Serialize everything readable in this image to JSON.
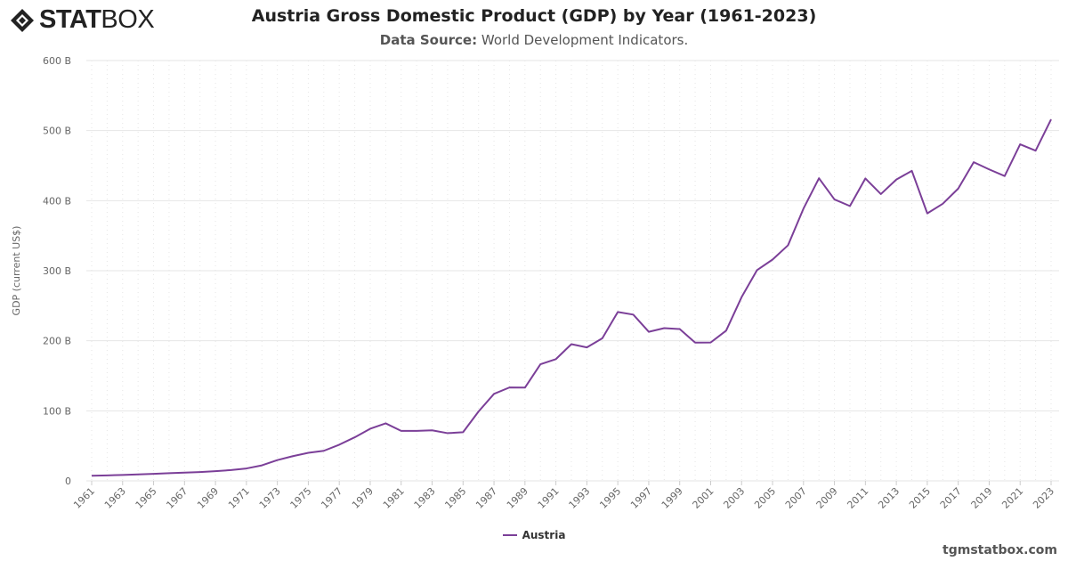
{
  "brand": {
    "logo_bold": "STAT",
    "logo_light": "BOX"
  },
  "header": {
    "title": "Austria Gross Domestic Product (GDP) by Year (1961-2023)",
    "source_label": "Data Source:",
    "source_value": "World Development Indicators."
  },
  "footer": {
    "site": "tgmstatbox.com"
  },
  "colors": {
    "series": "#7b3f98",
    "grid": "#e6e6e6"
  },
  "chart_data": {
    "type": "line",
    "title": "Austria Gross Domestic Product (GDP) by Year (1961-2023)",
    "xlabel": "",
    "ylabel": "GDP (current US$)",
    "ylim": [
      0,
      600
    ],
    "yticks": [
      "0",
      "100 B",
      "200 B",
      "300 B",
      "400 B",
      "500 B",
      "600 B"
    ],
    "ytick_values": [
      0,
      100,
      200,
      300,
      400,
      500,
      600
    ],
    "grid": true,
    "legend": "bottom-center",
    "x": [
      1961,
      1962,
      1963,
      1964,
      1965,
      1966,
      1967,
      1968,
      1969,
      1970,
      1971,
      1972,
      1973,
      1974,
      1975,
      1976,
      1977,
      1978,
      1979,
      1980,
      1981,
      1982,
      1983,
      1984,
      1985,
      1986,
      1987,
      1988,
      1989,
      1990,
      1991,
      1992,
      1993,
      1994,
      1995,
      1996,
      1997,
      1998,
      1999,
      2000,
      2001,
      2002,
      2003,
      2004,
      2005,
      2006,
      2007,
      2008,
      2009,
      2010,
      2011,
      2012,
      2013,
      2014,
      2015,
      2016,
      2017,
      2018,
      2019,
      2020,
      2021,
      2022,
      2023
    ],
    "series": [
      {
        "name": "Austria",
        "values": [
          7.3,
          7.8,
          8.4,
          9.2,
          10.0,
          10.9,
          11.7,
          12.6,
          13.8,
          15.4,
          17.7,
          22.1,
          29.6,
          35.3,
          40.0,
          42.9,
          51.6,
          62.2,
          74.4,
          82.1,
          71.3,
          71.4,
          72.1,
          68.1,
          69.4,
          99.0,
          124.2,
          133.3,
          133.1,
          166.5,
          173.8,
          195.1,
          190.5,
          203.5,
          241.0,
          237.3,
          212.8,
          218.0,
          216.7,
          197.3,
          197.5,
          214.4,
          262.3,
          300.9,
          315.9,
          336.3,
          388.7,
          432.0,
          401.8,
          392.3,
          431.7,
          409.4,
          430.1,
          442.6,
          381.8,
          395.6,
          417.3,
          454.9,
          444.6,
          435.2,
          480.4,
          471.4,
          516.0
        ]
      }
    ]
  }
}
